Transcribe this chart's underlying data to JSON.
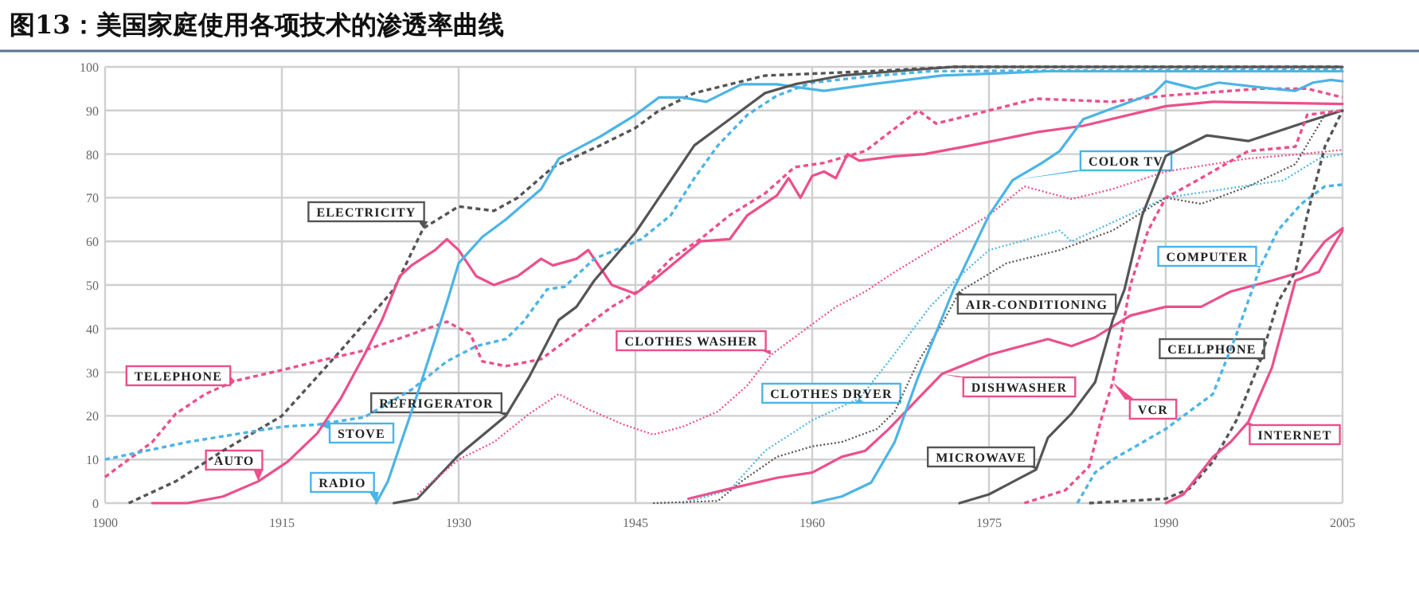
{
  "chart_data": {
    "type": "line",
    "title": "图13：美国家庭使用各项技术的渗透率曲线",
    "xlim": [
      1900,
      2005
    ],
    "xticks": [
      1900,
      1915,
      1930,
      1945,
      1960,
      1975,
      1990,
      2005
    ],
    "ylim": [
      0,
      100
    ],
    "yticks": [
      0,
      10,
      20,
      30,
      40,
      50,
      60,
      70,
      80,
      90,
      100
    ],
    "grid": true,
    "legend": false,
    "series": [
      {
        "name": "ELECTRICITY",
        "color": "#555555",
        "line_style": "dashed",
        "x": [
          1902,
          1906,
          1910,
          1915,
          1920,
          1924.5,
          1927,
          1930,
          1933,
          1935,
          1938,
          1942,
          1945,
          1947,
          1950,
          1956,
          1965,
          1972,
          2005
        ],
        "values": [
          0,
          5,
          12,
          20,
          35,
          49,
          63,
          68,
          67,
          70,
          77,
          82,
          86,
          90,
          94,
          98,
          99,
          100,
          100
        ]
      },
      {
        "name": "TELEPHONE",
        "color": "#ec4f8c",
        "line_style": "dashed",
        "x": [
          1900,
          1904,
          1906,
          1908.5,
          1911,
          1915,
          1918,
          1922,
          1926,
          1929,
          1931,
          1932,
          1934,
          1937,
          1939,
          1943,
          1945.5,
          1948,
          1950.5,
          1953,
          1956,
          1958.5,
          1961,
          1964.5,
          1969,
          1970.5,
          1973.5,
          1979,
          1985.5,
          1990,
          1998,
          2002,
          2005
        ],
        "values": [
          6,
          14,
          20.5,
          25,
          28,
          30.5,
          32.5,
          35,
          38.7,
          41.6,
          38.7,
          32.5,
          31.4,
          33,
          37,
          45,
          49,
          56,
          60.5,
          66,
          71,
          77,
          78,
          80.7,
          90,
          87,
          89,
          92.7,
          92,
          93.4,
          95,
          95,
          93
        ]
      },
      {
        "name": "AUTO",
        "color": "#ec4f8c",
        "line_style": "solid",
        "x": [
          1904,
          1907,
          1910,
          1913,
          1915.5,
          1918,
          1920,
          1922,
          1923.5,
          1925,
          1926,
          1928,
          1929,
          1930,
          1931.5,
          1933,
          1935,
          1937,
          1938,
          1940,
          1941,
          1943,
          1945,
          1946.5,
          1950.5,
          1953,
          1954.5,
          1957,
          1958,
          1959,
          1960,
          1961,
          1962,
          1963,
          1964,
          1967,
          1969.5,
          1973.5,
          1979,
          1983,
          1990,
          1994,
          2005
        ],
        "values": [
          0,
          0,
          1.5,
          5,
          9.5,
          16,
          24,
          34,
          42,
          52,
          54.5,
          58,
          60.5,
          58,
          52,
          50,
          52,
          56,
          54.5,
          56,
          58,
          50,
          48,
          51,
          60,
          60.5,
          66,
          70.5,
          74.5,
          70,
          75,
          76,
          74.5,
          80,
          78.5,
          79.5,
          80,
          82,
          85,
          86.5,
          91,
          92,
          91.5
        ]
      },
      {
        "name": "STOVE",
        "color": "#4bb4e6",
        "line_style": "dashed",
        "x": [
          1900,
          1907,
          1915,
          1918,
          1922,
          1926,
          1929,
          1931.5,
          1934,
          1935.5,
          1937.5,
          1939,
          1941.5,
          1945.5,
          1948,
          1950,
          1952,
          1954.5,
          1957,
          1960,
          1965.5,
          1970,
          2005
        ],
        "values": [
          10,
          14,
          17.5,
          18,
          19.7,
          26,
          32.5,
          36,
          37.6,
          41.6,
          49,
          49.6,
          56,
          60.5,
          66,
          74.5,
          82,
          89,
          93.4,
          96.4,
          98,
          99,
          99.5
        ]
      },
      {
        "name": "RADIO",
        "color": "#4bb4e6",
        "line_style": "solid",
        "x": [
          1923,
          1924,
          1926.5,
          1929,
          1930,
          1932,
          1934,
          1937,
          1938.5,
          1942,
          1945,
          1947,
          1949,
          1951,
          1954,
          1957,
          1961,
          1965,
          1971,
          1980,
          2005
        ],
        "values": [
          0,
          5,
          25,
          46,
          55,
          61,
          65,
          72,
          79,
          84,
          89,
          93,
          93,
          92,
          96,
          96,
          94.5,
          96,
          98,
          99,
          99
        ]
      },
      {
        "name": "REFRIGERATOR",
        "color": "#555555",
        "line_style": "solid",
        "x": [
          1924.5,
          1926.5,
          1930,
          1934,
          1936,
          1938.5,
          1940,
          1941.5,
          1945,
          1948,
          1950,
          1953,
          1956,
          1958.5,
          1962.5,
          1967,
          1972,
          2005
        ],
        "values": [
          0,
          1,
          11,
          20,
          29,
          42,
          45,
          51,
          62,
          74,
          82,
          88,
          94,
          96,
          98,
          99,
          100,
          100
        ]
      },
      {
        "name": "CLOTHES WASHER",
        "color": "#ec4f8c",
        "line_style": "dotted",
        "x": [
          1926.5,
          1930,
          1933,
          1936,
          1938.5,
          1941,
          1944,
          1946.5,
          1949,
          1952,
          1954.5,
          1956.5,
          1959.5,
          1962,
          1964.5,
          1967,
          1975,
          1978,
          1982,
          1985.5,
          1990,
          1997,
          2001.5,
          2005
        ],
        "values": [
          2,
          10,
          14,
          20.5,
          25,
          21.5,
          18,
          15.7,
          17.5,
          21,
          27,
          34,
          40,
          45,
          48.5,
          53,
          66,
          72.6,
          69.7,
          72,
          76,
          79,
          80,
          81
        ]
      },
      {
        "name": "CLOTHES DRYER",
        "color": "#4bb4e6",
        "line_style": "dotted",
        "x": [
          1949,
          1953,
          1956,
          1960,
          1964,
          1966.5,
          1970,
          1972.5,
          1975,
          1981,
          1982,
          1990,
          1995,
          2000,
          2003,
          2005
        ],
        "values": [
          0,
          3,
          12,
          19,
          24,
          32.5,
          45,
          52,
          58,
          62.5,
          60,
          70,
          72,
          74,
          79,
          80
        ]
      },
      {
        "name": "AIR-CONDITIONING",
        "color": "#555555",
        "line_style": "dotted",
        "x": [
          1946.5,
          1952,
          1954,
          1957,
          1960,
          1962.5,
          1965.5,
          1967,
          1969,
          1971,
          1972.5,
          1976.5,
          1981,
          1985.5,
          1990,
          1993,
          1997,
          2001,
          2003.5,
          2005
        ],
        "values": [
          0,
          0.5,
          5,
          10.6,
          13,
          14,
          17,
          21,
          32.5,
          41,
          48.5,
          55,
          58,
          62.5,
          70,
          68.6,
          72.6,
          77.7,
          89,
          90
        ]
      },
      {
        "name": "DISHWASHER",
        "color": "#ec4f8c",
        "line_style": "solid",
        "x": [
          1949.5,
          1953,
          1957,
          1960,
          1962.5,
          1964.5,
          1966.5,
          1969,
          1971,
          1975,
          1980,
          1982,
          1984,
          1987,
          1990,
          1993,
          1995.5,
          1999,
          2001.5,
          2003.5,
          2005
        ],
        "values": [
          1,
          3.3,
          5.8,
          7,
          10.6,
          12,
          17,
          24,
          29.6,
          34,
          37.6,
          36,
          38,
          43,
          45,
          45,
          48.5,
          51,
          53,
          60,
          63
        ]
      },
      {
        "name": "MICROWAVE",
        "color": "#555555",
        "line_style": "solid",
        "x": [
          1972.5,
          1975,
          1979,
          1980,
          1982,
          1984,
          1985.5,
          1986.5,
          1988,
          1990,
          1993.5,
          1997,
          2001.5,
          2005
        ],
        "values": [
          0,
          2,
          7.7,
          15,
          20.5,
          27.7,
          42,
          49,
          66,
          79.6,
          84.3,
          83,
          87,
          90
        ]
      },
      {
        "name": "COLOR TV",
        "color": "#4bb4e6",
        "line_style": "solid",
        "x": [
          1960,
          1962.5,
          1965,
          1967,
          1969,
          1972,
          1975,
          1977,
          1979.5,
          1981,
          1983,
          1985.5,
          1989,
          1990,
          1992.5,
          1994.5,
          1999,
          2001,
          2002.5,
          2004,
          2005
        ],
        "values": [
          0,
          1.5,
          4.7,
          14,
          29,
          49,
          66,
          74,
          78,
          80.7,
          88,
          90.5,
          94,
          96.7,
          95,
          96.4,
          95,
          94.5,
          96.4,
          97,
          96.7
        ]
      },
      {
        "name": "VCR",
        "color": "#ec4f8c",
        "line_style": "dashed",
        "x": [
          1978,
          1981.5,
          1983.5,
          1984.5,
          1985.5,
          1987,
          1988.5,
          1990,
          1993,
          1997,
          2001,
          2002,
          2005
        ],
        "values": [
          0,
          3,
          8.4,
          19,
          27.7,
          50,
          62.5,
          70,
          74.5,
          80.7,
          81.7,
          89,
          90
        ]
      },
      {
        "name": "COMPUTER",
        "color": "#4bb4e6",
        "line_style": "dashed",
        "x": [
          1982.5,
          1984,
          1985.5,
          1990,
          1994,
          1996,
          1998,
          1999.5,
          2001.5,
          2003.5,
          2005
        ],
        "values": [
          0,
          7,
          10,
          17,
          25,
          38.7,
          54,
          62.5,
          68.6,
          72.6,
          73
        ]
      },
      {
        "name": "CELLPHONE",
        "color": "#555555",
        "line_style": "dashed",
        "x": [
          1983.5,
          1990,
          1992,
          1994,
          1996,
          1998,
          1999.5,
          2001,
          2002,
          2003.5,
          2005
        ],
        "values": [
          0,
          1,
          3.3,
          9.5,
          19,
          32.5,
          46,
          53,
          66,
          81.7,
          90
        ]
      },
      {
        "name": "INTERNET",
        "color": "#ec4f8c",
        "line_style": "solid",
        "x": [
          1990,
          1991.5,
          1994,
          1995.5,
          1997,
          1999,
          2001,
          2003,
          2004,
          2005
        ],
        "values": [
          0,
          2,
          10.6,
          14,
          18.6,
          31,
          51,
          53,
          58,
          62.5
        ]
      }
    ]
  }
}
